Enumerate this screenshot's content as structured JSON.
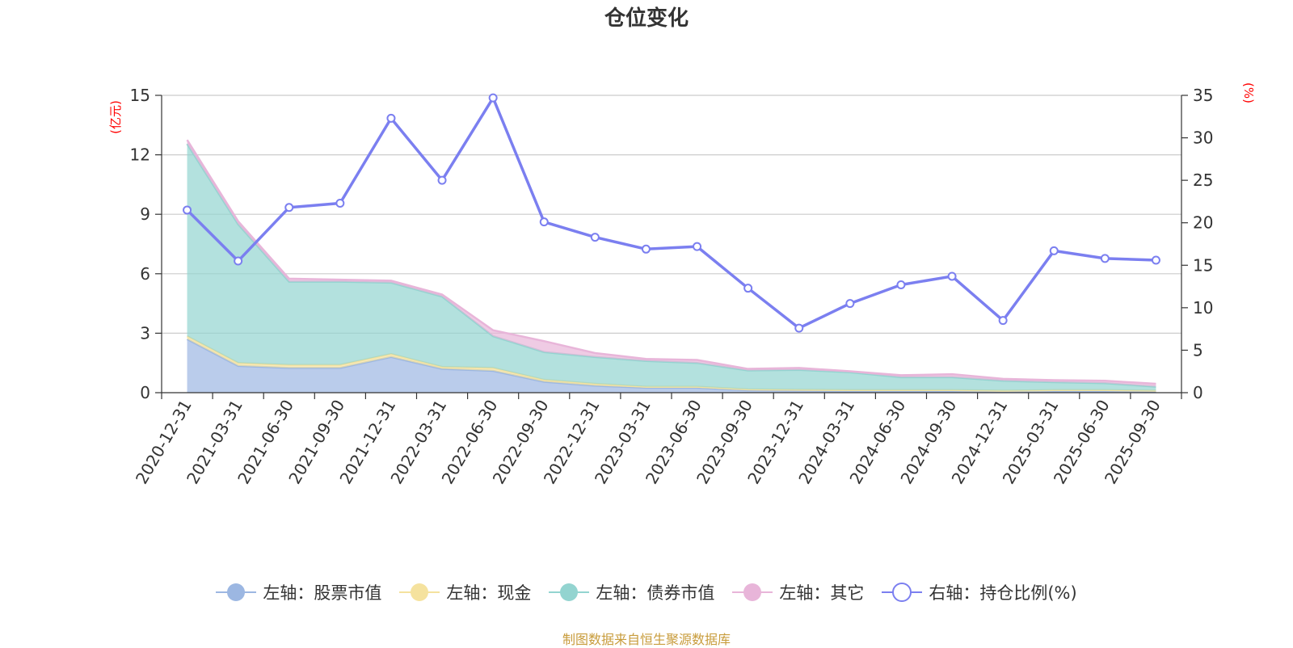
{
  "title": "仓位变化",
  "source": "制图数据来自恒生聚源数据库",
  "chart_data": {
    "type": "area",
    "categories": [
      "2020-12-31",
      "2021-03-31",
      "2021-06-30",
      "2021-09-30",
      "2021-12-31",
      "2022-03-31",
      "2022-06-30",
      "2022-09-30",
      "2022-12-31",
      "2023-03-31",
      "2023-06-30",
      "2023-09-30",
      "2023-12-31",
      "2024-03-31",
      "2024-06-30",
      "2024-09-30",
      "2024-12-31",
      "2025-03-31",
      "2025-06-30",
      "2025-09-30"
    ],
    "left_axis": {
      "unit": "(亿元)",
      "ylim": [
        0,
        15
      ],
      "ticks": [
        "0",
        "3",
        "6",
        "9",
        "12",
        "15"
      ]
    },
    "right_axis": {
      "unit": "(%)",
      "ylim": [
        0,
        35
      ],
      "ticks": [
        "0",
        "5",
        "10",
        "15",
        "20",
        "25",
        "30",
        "35"
      ]
    },
    "grid": true,
    "legend_position": "bottom",
    "stacked_series": [
      {
        "name": "左轴：股票市值",
        "color": "#9cb7e2",
        "values": [
          2.7,
          1.35,
          1.25,
          1.25,
          1.8,
          1.2,
          1.1,
          0.55,
          0.35,
          0.25,
          0.25,
          0.12,
          0.1,
          0.08,
          0.08,
          0.08,
          0.05,
          0.08,
          0.08,
          0.06
        ]
      },
      {
        "name": "左轴：现金",
        "color": "#f5e29e",
        "values": [
          0.15,
          0.15,
          0.15,
          0.15,
          0.15,
          0.1,
          0.15,
          0.1,
          0.1,
          0.05,
          0.05,
          0.05,
          0.05,
          0.05,
          0.05,
          0.05,
          0.05,
          0.05,
          0.05,
          0.04
        ]
      },
      {
        "name": "左轴：债券市值",
        "color": "#93d4d0",
        "values": [
          9.7,
          7.0,
          4.2,
          4.2,
          3.6,
          3.55,
          1.6,
          1.4,
          1.35,
          1.3,
          1.2,
          0.95,
          1.0,
          0.9,
          0.65,
          0.65,
          0.5,
          0.4,
          0.35,
          0.2
        ]
      },
      {
        "name": "左轴：其它",
        "color": "#e8b5d9",
        "values": [
          0.2,
          0.15,
          0.15,
          0.1,
          0.1,
          0.1,
          0.3,
          0.55,
          0.2,
          0.1,
          0.15,
          0.08,
          0.1,
          0.05,
          0.1,
          0.15,
          0.1,
          0.1,
          0.12,
          0.15
        ]
      }
    ],
    "line_series": {
      "name": "右轴：持仓比例(%)",
      "color": "#7b7ff0",
      "values": [
        21.5,
        15.5,
        21.8,
        22.3,
        32.3,
        25.0,
        34.7,
        20.1,
        18.3,
        16.9,
        17.2,
        12.3,
        7.6,
        10.5,
        12.7,
        13.7,
        8.5,
        16.7,
        15.8,
        15.6
      ]
    }
  }
}
